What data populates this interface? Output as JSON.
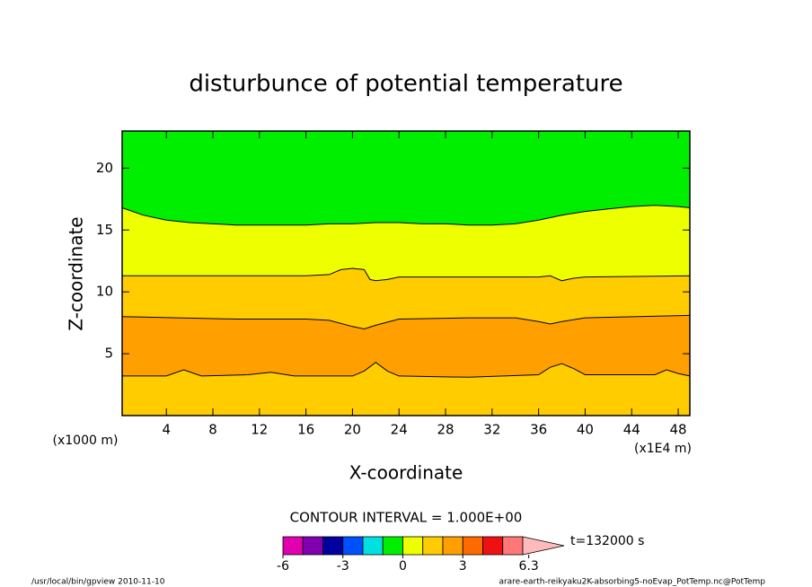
{
  "chart_data": {
    "type": "contour",
    "title": "disturbunce of potential temperature",
    "xlabel": "X-coordinate",
    "ylabel": "Z-coordinate",
    "xunit": "(x1E4 m)",
    "yunit": "(x1000 m)",
    "xlim": [
      0.2,
      49
    ],
    "ylim": [
      0,
      23
    ],
    "xticks": [
      4,
      8,
      12,
      16,
      20,
      24,
      28,
      32,
      36,
      40,
      44,
      48
    ],
    "yticks": [
      5,
      10,
      15,
      20
    ],
    "background": "#00ee00",
    "contours": [
      {
        "level": 0,
        "fill": "#eeff00",
        "x": [
          0,
          2,
          4,
          6,
          8,
          10,
          12,
          14,
          16,
          18,
          20,
          22,
          24,
          26,
          28,
          30,
          32,
          34,
          36,
          38,
          40,
          42,
          44,
          46,
          48,
          49
        ],
        "z": [
          16.8,
          16.2,
          15.8,
          15.6,
          15.5,
          15.4,
          15.4,
          15.4,
          15.4,
          15.5,
          15.5,
          15.6,
          15.6,
          15.5,
          15.5,
          15.4,
          15.4,
          15.5,
          15.8,
          16.2,
          16.5,
          16.7,
          16.9,
          17.0,
          16.9,
          16.8
        ]
      },
      {
        "level": 1,
        "fill": "#ffcc00",
        "x": [
          0,
          8,
          16,
          18,
          19,
          20,
          21,
          21.5,
          22,
          23,
          24,
          30,
          36,
          37,
          38,
          39,
          40,
          49
        ],
        "z": [
          11.3,
          11.3,
          11.3,
          11.4,
          11.8,
          11.9,
          11.8,
          11.0,
          10.9,
          11.0,
          11.2,
          11.2,
          11.2,
          11.3,
          10.9,
          11.1,
          11.2,
          11.3
        ]
      },
      {
        "level": 2,
        "fill": "#ffa000",
        "x": [
          0,
          10,
          16,
          18,
          20,
          21,
          22,
          24,
          30,
          34,
          36,
          37,
          38,
          40,
          49
        ],
        "z": [
          8.0,
          7.8,
          7.8,
          7.7,
          7.2,
          7.0,
          7.3,
          7.8,
          7.9,
          7.9,
          7.6,
          7.4,
          7.6,
          7.9,
          8.1
        ]
      },
      {
        "level": 2,
        "fill": "#ffcc00",
        "x": [
          0,
          4,
          5.5,
          7,
          11,
          13,
          15,
          20,
          21,
          22,
          23,
          24,
          30,
          36,
          37,
          38,
          39,
          40,
          46,
          47,
          48,
          49
        ],
        "z": [
          3.2,
          3.2,
          3.7,
          3.2,
          3.3,
          3.5,
          3.2,
          3.2,
          3.6,
          4.3,
          3.6,
          3.2,
          3.1,
          3.3,
          3.9,
          4.2,
          3.8,
          3.3,
          3.3,
          3.7,
          3.4,
          3.2
        ]
      }
    ],
    "contour_interval": "CONTOUR INTERVAL = 1.000E+00",
    "time": "t=132000 s",
    "colorbar": {
      "levels": [
        -6,
        -5,
        -4,
        -3,
        -2,
        -1,
        0,
        1,
        2,
        3,
        4,
        5,
        6
      ],
      "colors": [
        "#e000b0",
        "#8000b0",
        "#0000a0",
        "#0050ff",
        "#00e0e0",
        "#00ee00",
        "#eeff00",
        "#ffcc00",
        "#ffa000",
        "#ff6a00",
        "#ee1111",
        "#ff7777"
      ],
      "extend_color": "#ffbbbb",
      "ticks": [
        -6,
        -3,
        0,
        3,
        6.3
      ]
    },
    "footer_left": "/usr/local/bin/gpview  2010-11-10",
    "footer_right": "arare-earth-reikyaku2K-absorbing5-noEvap_PotTemp.nc@PotTemp"
  }
}
